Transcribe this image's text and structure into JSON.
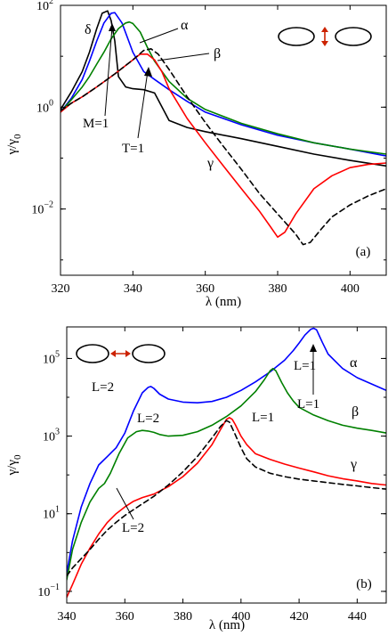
{
  "chart_data": [
    {
      "type": "line",
      "panel_label": "(a)",
      "xlabel": "λ (nm)",
      "ylabel": "γ/γ",
      "ylabel_sub": "0",
      "xlim": [
        320,
        410
      ],
      "ylim": [
        0.0005,
        100
      ],
      "y_scale": "log",
      "x_ticks": [
        "320",
        "340",
        "360",
        "380",
        "400"
      ],
      "x_tick_values": [
        320,
        340,
        360,
        380,
        400
      ],
      "y_ticks": [
        {
          "base": "10",
          "exp": "2",
          "value": 100
        },
        {
          "base": "10",
          "exp": "0",
          "value": 1
        },
        {
          "base": "10",
          "exp": "−2",
          "value": 0.01
        }
      ],
      "inset_icon": "two-ellipses-vertical-arrow-icon",
      "series": [
        {
          "name": "δ",
          "color": "#000000",
          "dash": false,
          "x": [
            320,
            323,
            326,
            328,
            330,
            331.5,
            333,
            334,
            335,
            336,
            338,
            340,
            343,
            346,
            350,
            355,
            360,
            370,
            380,
            390,
            400,
            410
          ],
          "y": [
            0.9,
            2,
            5,
            12,
            35,
            70,
            78,
            50,
            20,
            4,
            2.5,
            2.3,
            2.2,
            1.9,
            0.55,
            0.4,
            0.33,
            0.24,
            0.17,
            0.12,
            0.09,
            0.07
          ]
        },
        {
          "name": "α",
          "color": "#0000ff",
          "dash": false,
          "x": [
            320,
            323,
            326,
            328,
            330,
            332,
            334,
            335,
            337,
            340,
            343,
            346,
            350,
            355,
            360,
            370,
            380,
            390,
            400,
            410
          ],
          "y": [
            0.8,
            1.5,
            3.5,
            8,
            20,
            45,
            70,
            72,
            45,
            12,
            5,
            3.5,
            2.2,
            1.3,
            0.8,
            0.45,
            0.28,
            0.2,
            0.15,
            0.11
          ]
        },
        {
          "name": "β",
          "color": "#008000",
          "dash": false,
          "x": [
            320,
            323,
            326,
            328,
            330,
            332,
            334,
            336,
            338,
            339,
            340,
            342,
            344,
            346,
            350,
            355,
            360,
            370,
            380,
            390,
            400,
            410
          ],
          "y": [
            0.8,
            1.4,
            2.5,
            4,
            7,
            12,
            22,
            35,
            45,
            47,
            44,
            30,
            15,
            8,
            3.2,
            1.5,
            0.9,
            0.48,
            0.3,
            0.2,
            0.15,
            0.12
          ]
        },
        {
          "name": "γ",
          "color": "#ff0000",
          "dash": false,
          "x": [
            320,
            323,
            326,
            330,
            335,
            340,
            342,
            344,
            346,
            348,
            350,
            355,
            360,
            365,
            370,
            375,
            378,
            380,
            382,
            385,
            390,
            395,
            400,
            405,
            410
          ],
          "y": [
            0.8,
            1.2,
            1.6,
            2.5,
            4.5,
            8.5,
            11,
            11,
            8.5,
            5,
            2.3,
            0.6,
            0.2,
            0.07,
            0.025,
            0.009,
            0.0045,
            0.0028,
            0.0035,
            0.008,
            0.025,
            0.045,
            0.065,
            0.075,
            0.08
          ]
        },
        {
          "name": "",
          "color": "#000000",
          "dash": true,
          "x": [
            320,
            323,
            326,
            330,
            335,
            340,
            343,
            345,
            347,
            350,
            355,
            360,
            365,
            370,
            375,
            380,
            385,
            387,
            389,
            392,
            395,
            400,
            405,
            410
          ],
          "y": [
            0.85,
            1.2,
            1.6,
            2.5,
            4.5,
            8.5,
            13,
            14,
            11,
            5.5,
            1.6,
            0.5,
            0.17,
            0.06,
            0.02,
            0.008,
            0.0032,
            0.002,
            0.0022,
            0.004,
            0.007,
            0.012,
            0.018,
            0.025
          ]
        }
      ],
      "annotations": [
        {
          "text": "δ"
        },
        {
          "text": "α"
        },
        {
          "text": "β"
        },
        {
          "text": "γ"
        },
        {
          "text": "M=1"
        },
        {
          "text": "T=1"
        }
      ]
    },
    {
      "type": "line",
      "panel_label": "(b)",
      "xlabel": "λ (nm)",
      "ylabel": "γ/γ",
      "ylabel_sub": "0",
      "xlim": [
        340,
        450
      ],
      "ylim": [
        0.05,
        650000
      ],
      "y_scale": "log",
      "x_ticks": [
        "340",
        "360",
        "380",
        "400",
        "420",
        "440"
      ],
      "x_tick_values": [
        340,
        360,
        380,
        400,
        420,
        440
      ],
      "y_ticks": [
        {
          "base": "10",
          "exp": "5",
          "value": 100000
        },
        {
          "base": "10",
          "exp": "3",
          "value": 1000
        },
        {
          "base": "10",
          "exp": "1",
          "value": 10
        },
        {
          "base": "10",
          "exp": "−1",
          "value": 0.1
        }
      ],
      "inset_icon": "two-ellipses-horizontal-arrow-icon",
      "series": [
        {
          "name": "α",
          "color": "#0000ff",
          "dash": false,
          "x": [
            340,
            342,
            345,
            348,
            351,
            354,
            357,
            360,
            363,
            366,
            368,
            369,
            370,
            372,
            375,
            380,
            385,
            390,
            395,
            400,
            405,
            410,
            415,
            418,
            420,
            422,
            424,
            425,
            426,
            428,
            430,
            435,
            440,
            445,
            450
          ],
          "y": [
            0.3,
            2,
            15,
            60,
            180,
            300,
            500,
            1200,
            4500,
            13000,
            18000,
            19000,
            17000,
            12000,
            9000,
            7500,
            7200,
            7800,
            10000,
            15000,
            25000,
            45000,
            90000,
            160000,
            250000,
            400000,
            560000,
            600000,
            550000,
            260000,
            130000,
            55000,
            32000,
            22000,
            15000
          ]
        },
        {
          "name": "β",
          "color": "#008000",
          "dash": false,
          "x": [
            340,
            342,
            345,
            348,
            351,
            353,
            355,
            358,
            361,
            364,
            366,
            368,
            370,
            372,
            375,
            380,
            385,
            390,
            395,
            400,
            405,
            408,
            410,
            411,
            412,
            414,
            416,
            418,
            420,
            425,
            430,
            435,
            440,
            445,
            450
          ],
          "y": [
            0.2,
            1.2,
            6,
            20,
            45,
            60,
            110,
            350,
            900,
            1300,
            1400,
            1350,
            1250,
            1100,
            1000,
            1050,
            1300,
            1900,
            3200,
            6000,
            14000,
            28000,
            48000,
            55000,
            48000,
            24000,
            13000,
            8000,
            5500,
            3500,
            2500,
            1900,
            1600,
            1400,
            1200
          ]
        },
        {
          "name": "γ",
          "color": "#ff0000",
          "dash": false,
          "x": [
            340,
            342,
            345,
            348,
            351,
            354,
            357,
            360,
            363,
            366,
            370,
            375,
            380,
            385,
            390,
            393,
            395,
            396,
            397,
            398,
            400,
            402,
            405,
            410,
            415,
            420,
            425,
            430,
            435,
            440,
            445,
            450
          ],
          "y": [
            0.07,
            0.15,
            0.5,
            1.3,
            3,
            6,
            10,
            15,
            21,
            26,
            32,
            50,
            90,
            200,
            600,
            1500,
            2700,
            3000,
            2700,
            2000,
            1000,
            600,
            350,
            250,
            190,
            150,
            120,
            95,
            80,
            70,
            60,
            55
          ]
        },
        {
          "name": "",
          "color": "#000000",
          "dash": true,
          "x": [
            340,
            342,
            345,
            348,
            351,
            354,
            357,
            360,
            365,
            370,
            375,
            380,
            385,
            390,
            393,
            395,
            396,
            398,
            400,
            402,
            405,
            410,
            415,
            420,
            425,
            430,
            435,
            440,
            445,
            450
          ],
          "y": [
            0.25,
            0.4,
            0.7,
            1.2,
            2.2,
            3.8,
            6,
            9,
            16,
            28,
            55,
            120,
            300,
            900,
            1800,
            2500,
            2300,
            1100,
            500,
            260,
            160,
            110,
            90,
            78,
            70,
            63,
            57,
            52,
            47,
            43
          ]
        }
      ],
      "annotations": [
        {
          "text": "α"
        },
        {
          "text": "β"
        },
        {
          "text": "γ"
        },
        {
          "text": "L=2"
        },
        {
          "text": "L=2"
        },
        {
          "text": "L=2"
        },
        {
          "text": "L=1"
        },
        {
          "text": "L=1"
        },
        {
          "text": "L=1"
        }
      ]
    }
  ]
}
